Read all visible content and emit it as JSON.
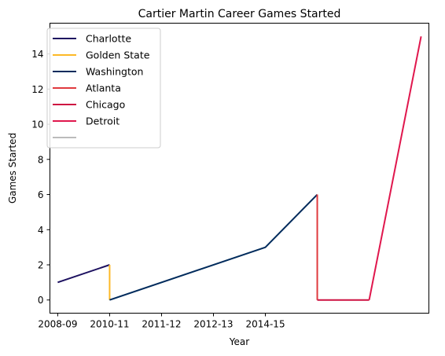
{
  "chart_data": {
    "type": "line",
    "title": "Cartier Martin Career Games Started",
    "xlabel": "Year",
    "ylabel": "Games Started",
    "x_ticks": [
      "2008-09",
      "2010-11",
      "2011-12",
      "2012-13",
      "2014-15"
    ],
    "x_range": [
      -0.15,
      7.15
    ],
    "ylim": [
      -0.75,
      15.75
    ],
    "y_ticks": [
      0,
      2,
      4,
      6,
      8,
      10,
      12,
      14
    ],
    "grid": false,
    "legend_position": "upper-left",
    "legend_entries": [
      "Charlotte",
      "Golden State",
      "Washington",
      "Atlanta",
      "Chicago",
      "Detroit",
      ""
    ],
    "series": [
      {
        "name": "Charlotte",
        "color": "#1D1160",
        "points": [
          {
            "x": 0,
            "y": 1
          },
          {
            "x": 1,
            "y": 2
          }
        ]
      },
      {
        "name": "Golden State",
        "color": "#FDB927",
        "points": [
          {
            "x": 1,
            "y": 2
          },
          {
            "x": 1,
            "y": 0
          }
        ]
      },
      {
        "name": "Washington",
        "color": "#002B5C",
        "points": [
          {
            "x": 1,
            "y": 0
          },
          {
            "x": 4,
            "y": 3
          },
          {
            "x": 5,
            "y": 6
          }
        ]
      },
      {
        "name": "Atlanta",
        "color": "#E03A3E",
        "points": [
          {
            "x": 5,
            "y": 6
          },
          {
            "x": 5,
            "y": 0
          }
        ]
      },
      {
        "name": "Chicago",
        "color": "#CE1141",
        "points": [
          {
            "x": 5,
            "y": 0
          },
          {
            "x": 6,
            "y": 0
          }
        ]
      },
      {
        "name": "Detroit",
        "color": "#E0174D",
        "points": [
          {
            "x": 6,
            "y": 0
          },
          {
            "x": 7,
            "y": 15
          }
        ]
      },
      {
        "name": "",
        "color": "#BBBBBB",
        "points": []
      }
    ]
  }
}
